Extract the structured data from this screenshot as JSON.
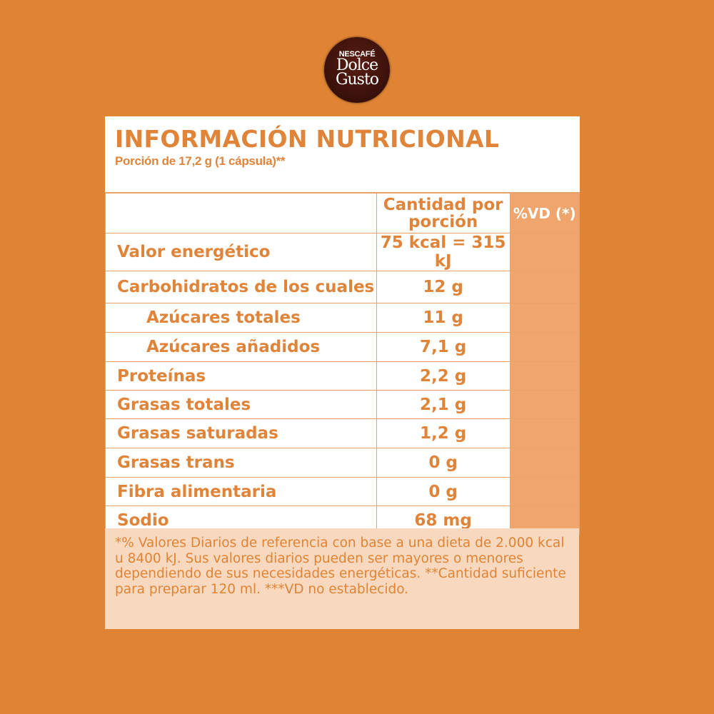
{
  "logo": {
    "brand": "NESCAFÉ",
    "name_line1": "Dolce",
    "name_line2": "Gusto"
  },
  "title": "INFORMACIÓN NUTRICIONAL",
  "serving": "Porción de 17,2 g (1 cápsula)**",
  "header": {
    "amount": "Cantidad por porción",
    "dv": "%VD (*)"
  },
  "rows": [
    {
      "label": "Valor energético",
      "value": "75 kcal = 315 kJ"
    },
    {
      "label": "Carbohidratos de los cuales",
      "value": "12 g"
    },
    {
      "label": "Azúcares totales",
      "value": "11 g"
    },
    {
      "label": "Azúcares añadidos",
      "value": "7,1 g"
    },
    {
      "label": "Proteínas",
      "value": "2,2 g"
    },
    {
      "label": "Grasas totales",
      "value": "2,1 g"
    },
    {
      "label": "Grasas saturadas",
      "value": "1,2 g"
    },
    {
      "label": "Grasas trans",
      "value": "0 g"
    },
    {
      "label": "Fibra alimentaria",
      "value": "0 g"
    },
    {
      "label": "Sodio",
      "value": "68 mg"
    }
  ],
  "footnote": "*% Valores Diarios de referencia con base a una dieta de 2.000 kcal u 8400 kJ. Sus valores diarios pueden ser mayores o menores dependiendo de sus necesidades energéticas. **Cantidad suficiente para preparar 120 ml. ***VD no establecido.",
  "colors": {
    "background": "#E08434",
    "text": "#E0843A",
    "dv_column": "#EFA56C",
    "footnote_bg": "#F8D9C0"
  }
}
